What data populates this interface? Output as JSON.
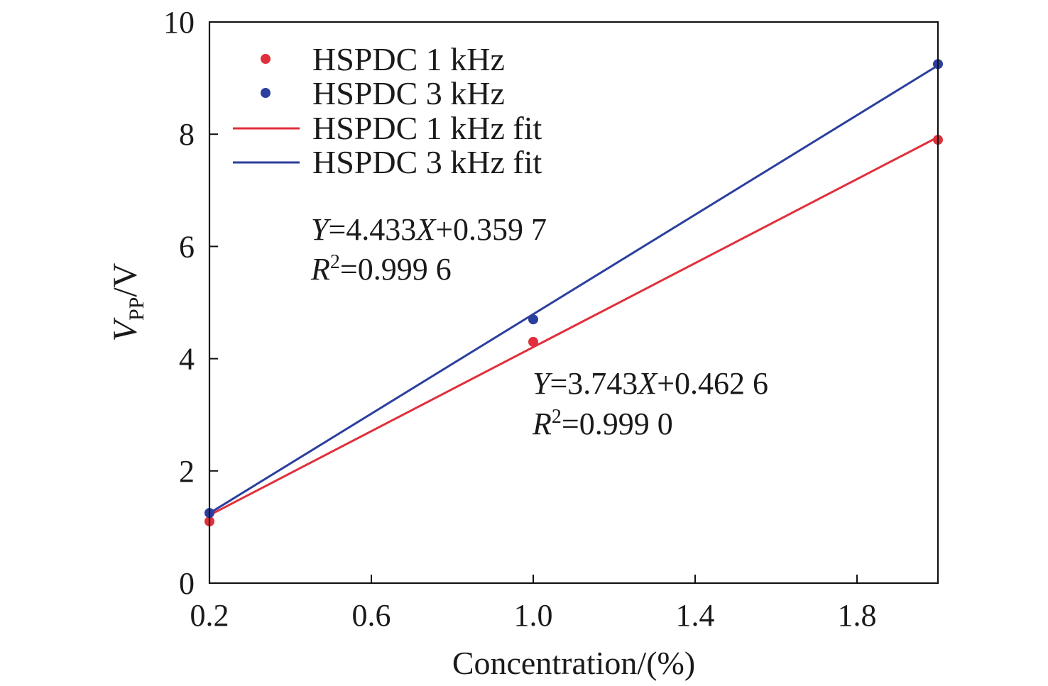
{
  "chart_data": {
    "type": "scatter",
    "xlabel": "Concentration/(%)",
    "ylabel": {
      "main": "V",
      "sub": "PP",
      "unit": "/V"
    },
    "xlim": [
      0.2,
      2.0
    ],
    "ylim": [
      0,
      10
    ],
    "xticks": [
      0.2,
      0.6,
      1.0,
      1.4,
      1.8
    ],
    "xtick_labels": [
      "0.2",
      "0.6",
      "1.0",
      "1.4",
      "1.8"
    ],
    "yticks": [
      0,
      2,
      4,
      6,
      8,
      10
    ],
    "ytick_labels": [
      "0",
      "2",
      "4",
      "6",
      "8",
      "10"
    ],
    "grid": false,
    "legend_position": "top-left",
    "series": [
      {
        "name": "HSPDC 1 kHz",
        "kind": "points",
        "color": "#e0303c",
        "x": [
          0.2,
          1.0,
          2.0
        ],
        "y": [
          1.1,
          4.3,
          7.9
        ]
      },
      {
        "name": "HSPDC 3 kHz",
        "kind": "points",
        "color": "#2b3f9e",
        "x": [
          0.2,
          1.0,
          2.0
        ],
        "y": [
          1.25,
          4.7,
          9.25
        ]
      },
      {
        "name": "HSPDC 1 kHz fit",
        "kind": "line",
        "color": "#e0303c",
        "slope": 3.743,
        "intercept": 0.4626
      },
      {
        "name": "HSPDC 3 kHz fit",
        "kind": "line",
        "color": "#2b3f9e",
        "slope": 4.433,
        "intercept": 0.3597
      }
    ],
    "annotations": [
      {
        "eq_y": "Y",
        "eq_mid": "=4.433",
        "eq_x": "X",
        "eq_rest": "+0.359 7",
        "r_sym": "R",
        "r_sup": "2",
        "r_rest": "=0.999 6"
      },
      {
        "eq_y": "Y",
        "eq_mid": "=3.743",
        "eq_x": "X",
        "eq_rest": "+0.462 6",
        "r_sym": "R",
        "r_sup": "2",
        "r_rest": "=0.999 0"
      }
    ]
  }
}
